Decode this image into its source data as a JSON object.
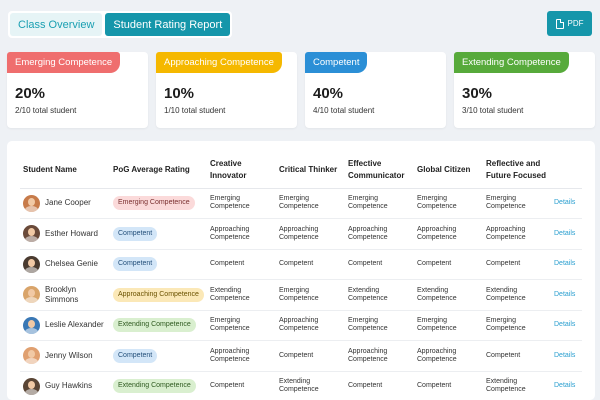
{
  "header": {
    "tabs": [
      {
        "label": "Class Overview"
      },
      {
        "label": "Student Rating Report"
      }
    ],
    "pdf_label": "PDF"
  },
  "cards": [
    {
      "title": "Emerging Competence",
      "percent": "20%",
      "sub": "2/10 total student",
      "color": "#ef6e6e"
    },
    {
      "title": "Approaching Competence",
      "percent": "10%",
      "sub": "1/10 total student",
      "color": "#f5b800"
    },
    {
      "title": "Competent",
      "percent": "40%",
      "sub": "4/10 total student",
      "color": "#2b8fd6"
    },
    {
      "title": "Extending Competence",
      "percent": "30%",
      "sub": "3/10 total student",
      "color": "#57aa3b"
    }
  ],
  "table": {
    "headers": [
      "Student Name",
      "PoG Average Rating",
      "Creative Innovator",
      "Critical Thinker",
      "Effective Communicator",
      "Global Citizen",
      "Reflective and Future Focused",
      ""
    ],
    "badge_styles": {
      "Emerging Competence": {
        "bg": "#fbdada",
        "fg": "#7a2f2f"
      },
      "Approaching Competence": {
        "bg": "#fbe8b7",
        "fg": "#6b5200"
      },
      "Competent": {
        "bg": "#d3e6f8",
        "fg": "#234f7a"
      },
      "Extending Competence": {
        "bg": "#d9efcf",
        "fg": "#2f5a20"
      }
    },
    "rows": [
      {
        "name": "Jane Cooper",
        "avatar_color": "#c77b4a",
        "pog": "Emerging Competence",
        "creative": "Emerging Competence",
        "critical": "Emerging Competence",
        "communicator": "Emerging Competence",
        "global": "Emerging Competence",
        "reflective": "Emerging Competence",
        "action": "Details"
      },
      {
        "name": "Esther Howard",
        "avatar_color": "#6a4a3a",
        "pog": "Competent",
        "creative": "Approaching Competence",
        "critical": "Approaching Competence",
        "communicator": "Approaching Competence",
        "global": "Approaching Competence",
        "reflective": "Approaching Competence",
        "action": "Details"
      },
      {
        "name": "Chelsea Genie",
        "avatar_color": "#4a3b30",
        "pog": "Competent",
        "creative": "Competent",
        "critical": "Competent",
        "communicator": "Competent",
        "global": "Competent",
        "reflective": "Competent",
        "action": "Details"
      },
      {
        "name": "Brooklyn Simmons",
        "avatar_color": "#d9a46a",
        "pog": "Approaching Competence",
        "creative": "Extending Competence",
        "critical": "Emerging Competence",
        "communicator": "Extending Competence",
        "global": "Extending Competence",
        "reflective": "Extending Competence",
        "action": "Details"
      },
      {
        "name": "Leslie Alexander",
        "avatar_color": "#3a78b5",
        "pog": "Extending Competence",
        "creative": "Emerging Competence",
        "critical": "Approaching Competence",
        "communicator": "Emerging Competence",
        "global": "Emerging Competence",
        "reflective": "Emerging Competence",
        "action": "Details"
      },
      {
        "name": "Jenny Wilson",
        "avatar_color": "#e0a070",
        "pog": "Competent",
        "creative": "Approaching Competence",
        "critical": "Competent",
        "communicator": "Approaching Competence",
        "global": "Approaching Competence",
        "reflective": "Competent",
        "action": "Details"
      },
      {
        "name": "Guy Hawkins",
        "avatar_color": "#5a4535",
        "pog": "Extending Competence",
        "creative": "Competent",
        "critical": "Extending Competence",
        "communicator": "Competent",
        "global": "Competent",
        "reflective": "Extending Competence",
        "action": "Details"
      }
    ]
  }
}
